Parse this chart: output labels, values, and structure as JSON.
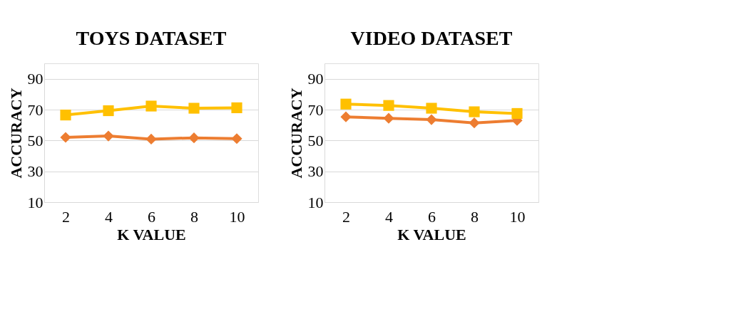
{
  "chart_data": [
    {
      "type": "line",
      "title": "TOYS DATASET",
      "xlabel": "K VALUE",
      "ylabel": "ACCURACY",
      "categories": [
        "2",
        "4",
        "6",
        "8",
        "10"
      ],
      "ylim": [
        10,
        100
      ],
      "yticks": [
        10,
        30,
        50,
        70,
        90
      ],
      "grid": "y",
      "line_style": "solid",
      "series": [
        {
          "color": "#ed7d31",
          "marker": "diamond",
          "values": [
            52,
            52.9,
            50.9,
            51.7,
            51.2
          ]
        },
        {
          "color": "#ffc000",
          "marker": "square",
          "values": [
            66.5,
            69.3,
            72.3,
            70.9,
            71.2
          ]
        }
      ]
    },
    {
      "type": "line",
      "title": "VIDEO DATASET",
      "xlabel": "K VALUE",
      "ylabel": "ACCURACY",
      "categories": [
        "2",
        "4",
        "6",
        "8",
        "10"
      ],
      "ylim": [
        10,
        100
      ],
      "yticks": [
        10,
        30,
        50,
        70,
        90
      ],
      "grid": "y",
      "line_style": "solid",
      "series": [
        {
          "color": "#ed7d31",
          "marker": "diamond",
          "values": [
            65.3,
            64.4,
            63.5,
            61.4,
            63
          ]
        },
        {
          "color": "#ffc000",
          "marker": "square",
          "values": [
            73.6,
            72.7,
            70.9,
            68.6,
            67.5
          ]
        }
      ]
    }
  ]
}
